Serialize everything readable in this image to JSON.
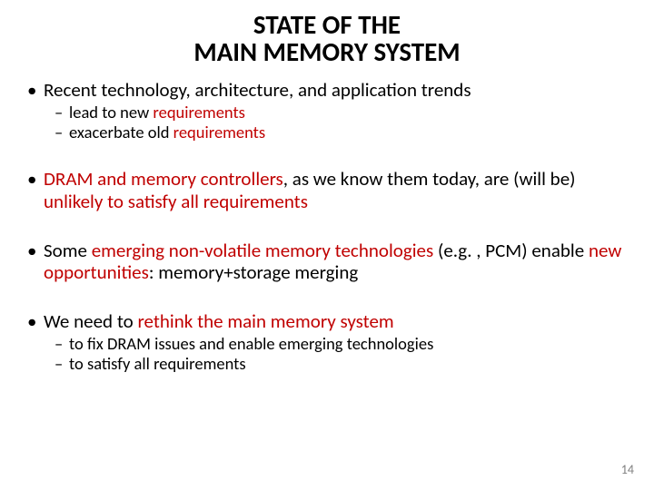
{
  "title": {
    "line1": "STATE OF THE",
    "line2": "MAIN MEMORY SYSTEM",
    "fontsize": 29,
    "color": "#000000"
  },
  "bullets": {
    "b1": {
      "pre": "Recent technology, architecture, and application trends",
      "sub1_pre": "lead to new ",
      "sub1_red": "requirements",
      "sub2_pre": "exacerbate old ",
      "sub2_red": "requirements"
    },
    "b2": {
      "red": "DRAM and memory controllers",
      "post": ", as we know them today, are (will be) ",
      "red2": "unlikely to satisfy all requirements"
    },
    "b3": {
      "pre": "Some ",
      "red": "emerging non-volatile memory technologies",
      "mid": " (e.g. , PCM) enable ",
      "red2": "new opportunities",
      "post": ": memory+storage merging"
    },
    "b4": {
      "pre": "We need to ",
      "red": "rethink the main memory system",
      "sub1": "to fix DRAM issues and enable emerging technologies",
      "sub2": "to satisfy all requirements"
    }
  },
  "colors": {
    "red": "#c00000",
    "text": "#000000",
    "pagenum": "#7f7f7f",
    "background": "#ffffff"
  },
  "page_number": "14"
}
